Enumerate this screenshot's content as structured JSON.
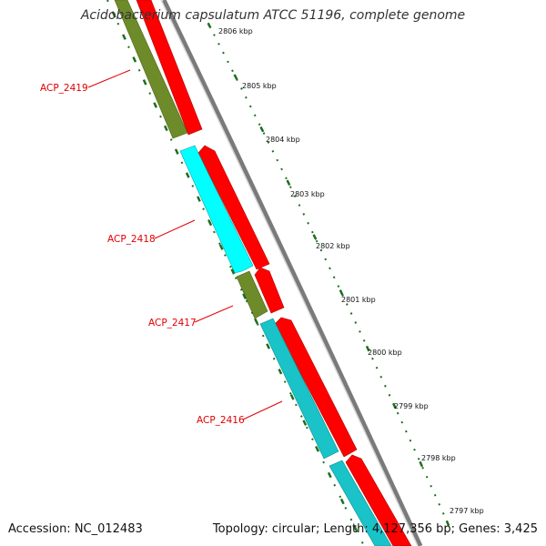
{
  "title": "Acidobacterium capsulatum ATCC 51196, complete genome",
  "footer": {
    "accession": "Accession: NC_012483",
    "summary": "Topology: circular; Length: 4,127,356 bp; Genes: 3,425"
  },
  "colors": {
    "cds_forward": "#ff0000",
    "cds_cyan": "#00ffff",
    "cds_teal": "#19c3c8",
    "cds_olive": "#6e8b2a",
    "backbone": "#7a7a7a",
    "tick": "#1e6e1e",
    "label": "#e00000"
  },
  "gene_labels": [
    "ACP_2419",
    "ACP_2418",
    "ACP_2417",
    "ACP_2416"
  ],
  "kbp_ticks": [
    "2806 kbp",
    "2805 kbp",
    "2804 kbp",
    "2803 kbp",
    "2802 kbp",
    "2801 kbp",
    "2800 kbp",
    "2799 kbp",
    "2798 kbp",
    "2797 kbp"
  ]
}
